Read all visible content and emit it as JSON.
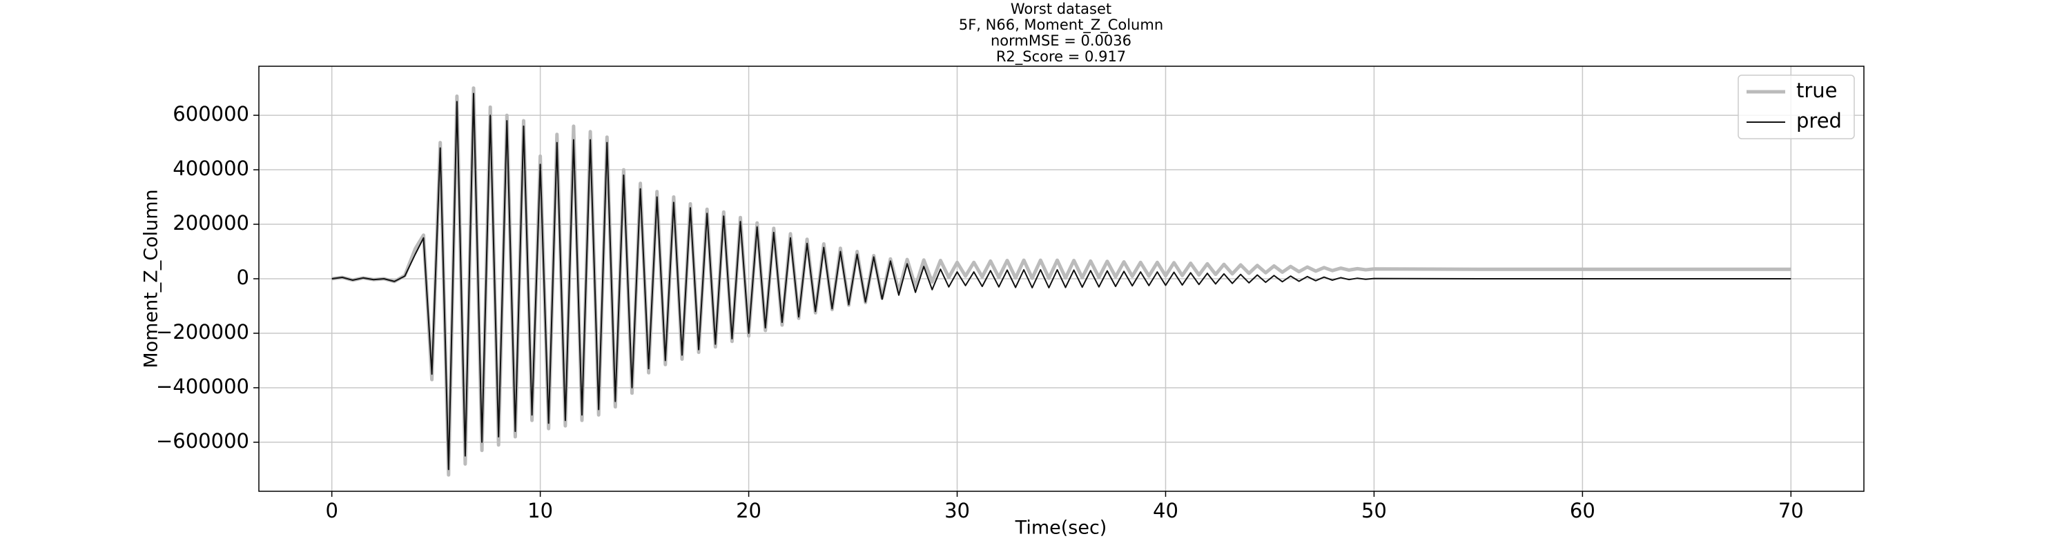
{
  "chart_data": {
    "type": "line",
    "title_lines": [
      "Worst dataset",
      "5F, N66, Moment_Z_Column",
      "normMSE = 0.0036",
      "R2_Score = 0.917"
    ],
    "xlabel": "Time(sec)",
    "ylabel": "Moment_Z_Column",
    "xlim": [
      -3.5,
      73.5
    ],
    "ylim": [
      -780000,
      780000
    ],
    "xticks": [
      0,
      10,
      20,
      30,
      40,
      50,
      60,
      70
    ],
    "yticks": [
      {
        "value": -600000,
        "label": "−600000"
      },
      {
        "value": -400000,
        "label": "−400000"
      },
      {
        "value": -200000,
        "label": "−200000"
      },
      0,
      200000,
      400000,
      600000
    ],
    "grid": true,
    "legend": "upper right",
    "x": [
      0,
      0.5,
      1,
      1.5,
      2,
      2.5,
      3,
      3.5,
      4,
      4.4,
      4.8,
      5.2,
      5.6,
      6,
      6.4,
      6.8,
      7.2,
      7.6,
      8,
      8.4,
      8.8,
      9.2,
      9.6,
      10,
      10.4,
      10.8,
      11.2,
      11.6,
      12,
      12.4,
      12.8,
      13.2,
      13.6,
      14,
      14.4,
      14.8,
      15.2,
      15.6,
      16,
      16.4,
      16.8,
      17.2,
      17.6,
      18,
      18.4,
      18.8,
      19.2,
      19.6,
      20,
      20.4,
      20.8,
      21.2,
      21.6,
      22,
      22.4,
      22.8,
      23.2,
      23.6,
      24,
      24.4,
      24.8,
      25.2,
      25.6,
      26,
      26.4,
      26.8,
      27.2,
      27.6,
      28,
      28.4,
      28.8,
      29.2,
      29.6,
      30,
      30.4,
      30.8,
      31.2,
      31.6,
      32,
      32.4,
      32.8,
      33.2,
      33.6,
      34,
      34.4,
      34.8,
      35.2,
      35.6,
      36,
      36.4,
      36.8,
      37.2,
      37.6,
      38,
      38.4,
      38.8,
      39.2,
      39.6,
      40,
      40.4,
      40.8,
      41.2,
      41.6,
      42,
      42.4,
      42.8,
      43.2,
      43.6,
      44,
      44.4,
      44.8,
      45.2,
      45.6,
      46,
      46.4,
      46.8,
      47.2,
      47.6,
      48,
      48.4,
      48.8,
      49.2,
      49.6,
      50,
      55,
      60,
      65,
      70
    ],
    "series": [
      {
        "name": "true",
        "color": "#bbbbbb",
        "values": [
          0,
          5000,
          -5000,
          3000,
          -3000,
          0,
          -10000,
          12000,
          110000,
          160000,
          -370000,
          500000,
          -720000,
          670000,
          -680000,
          700000,
          -630000,
          630000,
          -610000,
          600000,
          -580000,
          580000,
          -520000,
          450000,
          -550000,
          530000,
          -540000,
          560000,
          -520000,
          540000,
          -500000,
          520000,
          -470000,
          400000,
          -420000,
          350000,
          -345000,
          320000,
          -315000,
          300000,
          -295000,
          275000,
          -270000,
          255000,
          -250000,
          245000,
          -230000,
          225000,
          -210000,
          205000,
          -190000,
          185000,
          -170000,
          165000,
          -145000,
          145000,
          -125000,
          128000,
          -113000,
          112000,
          -97000,
          100000,
          -87000,
          85000,
          -71000,
          73000,
          -48000,
          71000,
          -30000,
          69000,
          -12000,
          67000,
          5000,
          60000,
          10000,
          60000,
          7000,
          65000,
          5000,
          67000,
          3000,
          68000,
          2000,
          68000,
          2000,
          68000,
          3000,
          67000,
          4000,
          65000,
          5000,
          64000,
          7000,
          62000,
          9000,
          60000,
          10000,
          60000,
          11000,
          59000,
          12000,
          57000,
          14000,
          55000,
          16000,
          53000,
          18000,
          51000,
          20000,
          49000,
          22000,
          47000,
          24000,
          45000,
          26000,
          43000,
          28000,
          41000,
          30000,
          39000,
          32000,
          37000,
          33000,
          36000,
          35000,
          35000,
          35000,
          35000
        ]
      },
      {
        "name": "pred",
        "color": "#111111",
        "values": [
          0,
          5000,
          -5000,
          3000,
          -3000,
          0,
          -10000,
          10000,
          90000,
          150000,
          -350000,
          480000,
          -700000,
          650000,
          -650000,
          680000,
          -600000,
          600000,
          -580000,
          580000,
          -560000,
          560000,
          -500000,
          420000,
          -530000,
          500000,
          -520000,
          510000,
          -500000,
          510000,
          -480000,
          500000,
          -450000,
          380000,
          -400000,
          330000,
          -330000,
          300000,
          -300000,
          280000,
          -280000,
          260000,
          -260000,
          240000,
          -240000,
          230000,
          -220000,
          210000,
          -200000,
          190000,
          -180000,
          170000,
          -160000,
          150000,
          -140000,
          130000,
          -120000,
          115000,
          -110000,
          100000,
          -95000,
          90000,
          -85000,
          80000,
          -75000,
          65000,
          -60000,
          55000,
          -50000,
          45000,
          -40000,
          35000,
          -30000,
          25000,
          -25000,
          25000,
          -28000,
          30000,
          -30000,
          32000,
          -32000,
          33000,
          -33000,
          33000,
          -33000,
          33000,
          -32000,
          32000,
          -31000,
          30000,
          -30000,
          29000,
          -28000,
          27000,
          -26000,
          25000,
          -25000,
          25000,
          -24000,
          24000,
          -23000,
          22000,
          -21000,
          20000,
          -19000,
          18000,
          -17000,
          16000,
          -15000,
          14000,
          -13000,
          12000,
          -11000,
          10000,
          -9000,
          8000,
          -7000,
          6000,
          -5000,
          4000,
          -3000,
          2000,
          -2000,
          1000,
          0,
          0,
          0,
          0
        ]
      }
    ]
  }
}
